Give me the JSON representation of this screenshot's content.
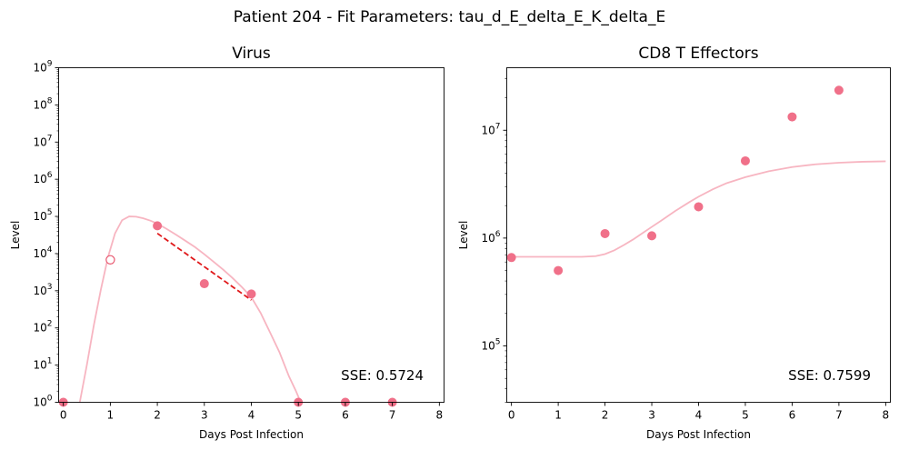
{
  "figure": {
    "suptitle": "Patient 204 - Fit Parameters: tau_d_E_delta_E_K_delta_E"
  },
  "colors": {
    "data_point": "#f07089",
    "fit_curve": "#f7b5c1",
    "trend_line": "#e0191b",
    "open_marker_stroke": "#e8566e"
  },
  "chart_data": [
    {
      "type": "scatter",
      "title": "Virus",
      "xlabel": "Days Post Infection",
      "ylabel": "Level",
      "xlim": [
        -0.1,
        8.1
      ],
      "ylim": [
        1,
        1000000000
      ],
      "yscale": "log",
      "xticks": [
        0,
        1,
        2,
        3,
        4,
        5,
        6,
        7,
        8
      ],
      "xtick_labels": [
        "0",
        "1",
        "2",
        "3",
        "4",
        "5",
        "6",
        "7",
        "8"
      ],
      "yticks": [
        1,
        10,
        100,
        1000,
        10000,
        100000,
        1000000,
        10000000,
        100000000,
        1000000000
      ],
      "ytick_labels": [
        {
          "base": "10",
          "exp": "0"
        },
        {
          "base": "10",
          "exp": "1"
        },
        {
          "base": "10",
          "exp": "2"
        },
        {
          "base": "10",
          "exp": "3"
        },
        {
          "base": "10",
          "exp": "4"
        },
        {
          "base": "10",
          "exp": "5"
        },
        {
          "base": "10",
          "exp": "6"
        },
        {
          "base": "10",
          "exp": "7"
        },
        {
          "base": "10",
          "exp": "8"
        },
        {
          "base": "10",
          "exp": "9"
        }
      ],
      "grid": false,
      "series": [
        {
          "kind": "points",
          "x": [
            0,
            2,
            3,
            4,
            5,
            6,
            7
          ],
          "y": [
            1,
            56000,
            1550,
            820,
            1,
            1,
            1
          ]
        },
        {
          "kind": "open_points",
          "x": [
            1
          ],
          "y": [
            6800
          ]
        },
        {
          "kind": "fit_curve",
          "x": [
            0.35,
            0.5,
            0.65,
            0.8,
            0.95,
            1.1,
            1.25,
            1.4,
            1.55,
            1.7,
            1.85,
            2.0,
            2.2,
            2.4,
            2.6,
            2.8,
            3.0,
            3.2,
            3.4,
            3.6,
            3.8,
            4.0,
            4.2,
            4.4,
            4.6,
            4.8,
            4.95,
            5.05
          ],
          "y": [
            1,
            10,
            120,
            1100,
            8000,
            35000,
            79000,
            100000,
            98000,
            89000,
            77000,
            64000,
            46000,
            32000,
            22000,
            15000,
            9600,
            6000,
            3700,
            2200,
            1250,
            670,
            250,
            75,
            22,
            5,
            2,
            1
          ]
        },
        {
          "kind": "trend_line",
          "x": [
            2,
            4
          ],
          "y": [
            35000,
            560
          ]
        }
      ],
      "annotation": "SSE: 0.5724"
    },
    {
      "type": "scatter",
      "title": "CD8 T Effectors",
      "xlabel": "Days Post Infection",
      "ylabel": "Level",
      "xlim": [
        -0.1,
        8.1
      ],
      "ylim": [
        30000,
        38000000
      ],
      "yscale": "log",
      "xticks": [
        0,
        1,
        2,
        3,
        4,
        5,
        6,
        7,
        8
      ],
      "xtick_labels": [
        "0",
        "1",
        "2",
        "3",
        "4",
        "5",
        "6",
        "7",
        "8"
      ],
      "yticks": [
        100000,
        1000000,
        10000000
      ],
      "ytick_labels": [
        {
          "base": "10",
          "exp": "5"
        },
        {
          "base": "10",
          "exp": "6"
        },
        {
          "base": "10",
          "exp": "7"
        }
      ],
      "grid": false,
      "series": [
        {
          "kind": "points",
          "x": [
            0,
            1,
            2,
            3,
            4,
            5,
            6,
            7
          ],
          "y": [
            660000,
            500000,
            1100000,
            1050000,
            1950000,
            5200000,
            13300000,
            23500000
          ]
        },
        {
          "kind": "fit_curve",
          "x": [
            0,
            0.5,
            1.0,
            1.5,
            1.8,
            2.0,
            2.2,
            2.4,
            2.6,
            2.8,
            3.0,
            3.2,
            3.5,
            3.8,
            4.0,
            4.3,
            4.6,
            5.0,
            5.5,
            6.0,
            6.5,
            7.0,
            7.5,
            8.0
          ],
          "y": [
            670000,
            670000,
            670000,
            670000,
            680000,
            710000,
            770000,
            860000,
            970000,
            1110000,
            1270000,
            1450000,
            1780000,
            2150000,
            2420000,
            2830000,
            3230000,
            3670000,
            4170000,
            4560000,
            4830000,
            5000000,
            5100000,
            5150000
          ]
        }
      ],
      "annotation": "SSE: 0.7599"
    }
  ]
}
